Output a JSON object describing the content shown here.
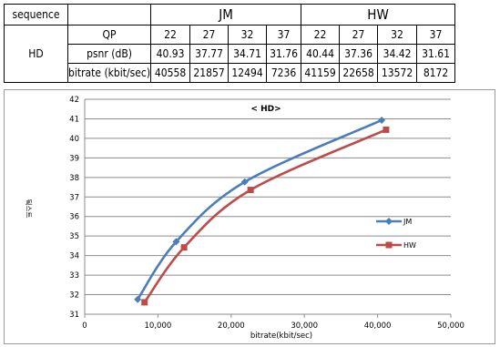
{
  "table": {
    "sequence_label": "sequence",
    "groups": [
      "JM",
      "HW"
    ],
    "row_label": "HD",
    "qp_label": "QP",
    "psnr_label": "psnr (dB)",
    "bitrate_label": "bitrate (kbit/sec)",
    "jm": {
      "qp": [
        "22",
        "27",
        "32",
        "37"
      ],
      "psnr": [
        "40.93",
        "37.77",
        "34.71",
        "31.76"
      ],
      "bitrate": [
        "40558",
        "21857",
        "12494",
        "7236"
      ]
    },
    "hw": {
      "qp": [
        "22",
        "27",
        "32",
        "37"
      ],
      "psnr": [
        "40.44",
        "37.36",
        "34.42",
        "31.61"
      ],
      "bitrate": [
        "41159",
        "22658",
        "13572",
        "8172"
      ]
    }
  },
  "chart_data": {
    "type": "line",
    "title": "< HD>",
    "xlabel": "bitrate(kbit/sec)",
    "ylabel": "딐스트",
    "xlim": [
      0,
      50000
    ],
    "ylim": [
      31,
      42
    ],
    "xticks": [
      "0",
      "10,000",
      "20,000",
      "30,000",
      "40,000",
      "50,000"
    ],
    "yticks": [
      "31",
      "32",
      "33",
      "34",
      "35",
      "36",
      "37",
      "38",
      "39",
      "40",
      "41",
      "42"
    ],
    "grid": "horizontal",
    "legend_position": "right",
    "series": [
      {
        "name": "JM",
        "color": "#4a7ebb",
        "marker": "diamond",
        "x": [
          7236,
          12494,
          21857,
          40558
        ],
        "y": [
          31.76,
          34.71,
          37.77,
          40.93
        ]
      },
      {
        "name": "HW",
        "color": "#be4b48",
        "marker": "square",
        "x": [
          8172,
          13572,
          22658,
          41159
        ],
        "y": [
          31.61,
          34.42,
          37.36,
          40.44
        ]
      }
    ]
  }
}
